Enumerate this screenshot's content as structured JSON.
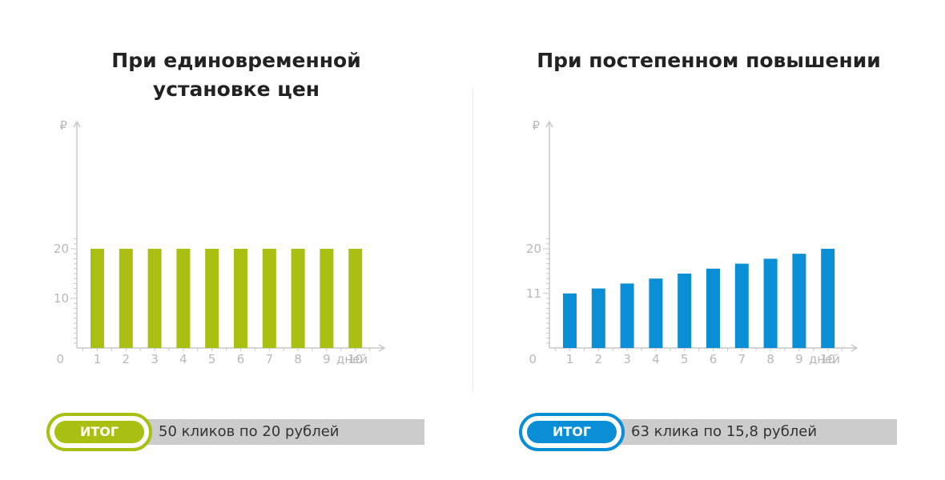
{
  "colors": {
    "green": "#a9bf12",
    "blue": "#0a8fd6",
    "axis": "#c8c8c8",
    "summary_bg": "#cccccc"
  },
  "chart_data": [
    {
      "type": "bar",
      "title": "При единовременной установке цен",
      "title_lines": [
        "При единовременной",
        "установке цен"
      ],
      "categories": [
        "1",
        "2",
        "3",
        "4",
        "5",
        "6",
        "7",
        "8",
        "9",
        "10"
      ],
      "values": [
        20,
        20,
        20,
        20,
        20,
        20,
        20,
        20,
        20,
        20
      ],
      "ylabel": "₽",
      "xlabel": "дней",
      "origin_label": "0",
      "y_ticks": [
        "10",
        "20"
      ],
      "ylim": [
        0,
        23
      ],
      "grid": false,
      "color": "#a9bf12"
    },
    {
      "type": "bar",
      "title": "При постепенном повышении",
      "title_lines": [
        "При постепенном повышении"
      ],
      "categories": [
        "1",
        "2",
        "3",
        "4",
        "5",
        "6",
        "7",
        "8",
        "9",
        "10"
      ],
      "values": [
        11,
        12,
        13,
        14,
        15,
        16,
        17,
        18,
        19,
        20
      ],
      "ylabel": "₽",
      "xlabel": "дней",
      "origin_label": "0",
      "y_ticks": [
        "11",
        "20"
      ],
      "ylim": [
        0,
        23
      ],
      "grid": false,
      "color": "#0a8fd6"
    }
  ],
  "summaries": [
    {
      "badge": "ИТОГ",
      "text": "50 кликов по 20 рублей"
    },
    {
      "badge": "ИТОГ",
      "text": "63 клика по 15,8 рублей"
    }
  ]
}
